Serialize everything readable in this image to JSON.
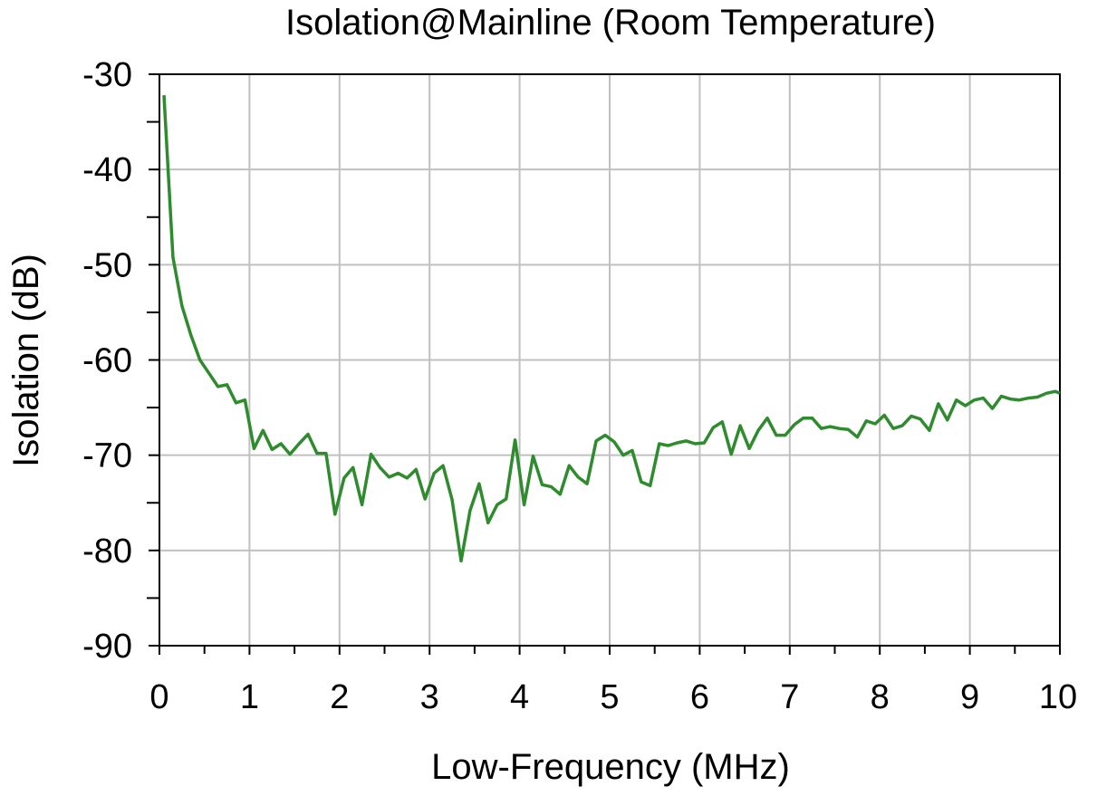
{
  "chart_data": {
    "type": "line",
    "title": "Isolation@Mainline (Room Temperature)",
    "xlabel": "Low-Frequency (MHz)",
    "ylabel": "Isolation (dB)",
    "xlim": [
      0,
      10
    ],
    "ylim": [
      -90,
      -30
    ],
    "xticks": [
      0,
      1,
      2,
      3,
      4,
      5,
      6,
      7,
      8,
      9,
      10
    ],
    "yticks": [
      -90,
      -80,
      -70,
      -60,
      -50,
      -40,
      -30
    ],
    "xtick_labels": [
      "0",
      "1",
      "2",
      "3",
      "4",
      "5",
      "6",
      "7",
      "8",
      "9",
      "10"
    ],
    "ytick_labels": [
      "-90",
      "-80",
      "-70",
      "-60",
      "-50",
      "-40",
      "-30"
    ],
    "grid": true,
    "line_color": "#2e8b2e",
    "series": [
      {
        "x": [
          0.05,
          0.15,
          0.25,
          0.35,
          0.45,
          0.55,
          0.65,
          0.75,
          0.85,
          0.95,
          1.05,
          1.15,
          1.25,
          1.35,
          1.45,
          1.55,
          1.65,
          1.75,
          1.85,
          1.95,
          2.05,
          2.15,
          2.25,
          2.35,
          2.45,
          2.55,
          2.65,
          2.75,
          2.85,
          2.95,
          3.05,
          3.15,
          3.25,
          3.35,
          3.45,
          3.55,
          3.65,
          3.75,
          3.85,
          3.95,
          4.05,
          4.15,
          4.25,
          4.35,
          4.45,
          4.55,
          4.65,
          4.75,
          4.85,
          4.95,
          5.05,
          5.15,
          5.25,
          5.35,
          5.45,
          5.55,
          5.65,
          5.75,
          5.85,
          5.95,
          6.05,
          6.15,
          6.25,
          6.35,
          6.45,
          6.55,
          6.65,
          6.75,
          6.85,
          6.95,
          7.05,
          7.15,
          7.25,
          7.35,
          7.45,
          7.55,
          7.65,
          7.75,
          7.85,
          7.95,
          8.05,
          8.15,
          8.25,
          8.35,
          8.45,
          8.55,
          8.65,
          8.75,
          8.85,
          8.95,
          9.05,
          9.15,
          9.25,
          9.35,
          9.45,
          9.55,
          9.65,
          9.75,
          9.85,
          9.95,
          10.0
        ],
        "values": [
          -32.2,
          -49.2,
          -54.3,
          -57.4,
          -60.0,
          -61.4,
          -62.8,
          -62.6,
          -64.5,
          -64.2,
          -69.3,
          -67.4,
          -69.4,
          -68.8,
          -69.9,
          -68.8,
          -67.8,
          -69.8,
          -69.8,
          -76.2,
          -72.4,
          -71.3,
          -75.2,
          -69.9,
          -71.3,
          -72.3,
          -71.9,
          -72.4,
          -71.5,
          -74.6,
          -71.9,
          -71.1,
          -74.7,
          -81.1,
          -75.8,
          -73.0,
          -77.1,
          -75.2,
          -74.6,
          -68.4,
          -75.2,
          -70.1,
          -73.1,
          -73.3,
          -74.1,
          -71.1,
          -72.3,
          -73.0,
          -68.5,
          -67.9,
          -68.6,
          -70.0,
          -69.5,
          -72.8,
          -73.2,
          -68.8,
          -69.0,
          -68.7,
          -68.5,
          -68.8,
          -68.7,
          -67.1,
          -66.5,
          -69.9,
          -66.9,
          -69.3,
          -67.4,
          -66.1,
          -67.9,
          -67.9,
          -66.8,
          -66.1,
          -66.1,
          -67.2,
          -67.0,
          -67.2,
          -67.3,
          -68.1,
          -66.4,
          -66.7,
          -65.8,
          -67.2,
          -66.9,
          -65.9,
          -66.2,
          -67.4,
          -64.6,
          -66.3,
          -64.2,
          -64.8,
          -64.2,
          -64.0,
          -65.1,
          -63.8,
          -64.1,
          -64.2,
          -64.0,
          -63.9,
          -63.5,
          -63.3,
          -63.5
        ]
      }
    ]
  }
}
